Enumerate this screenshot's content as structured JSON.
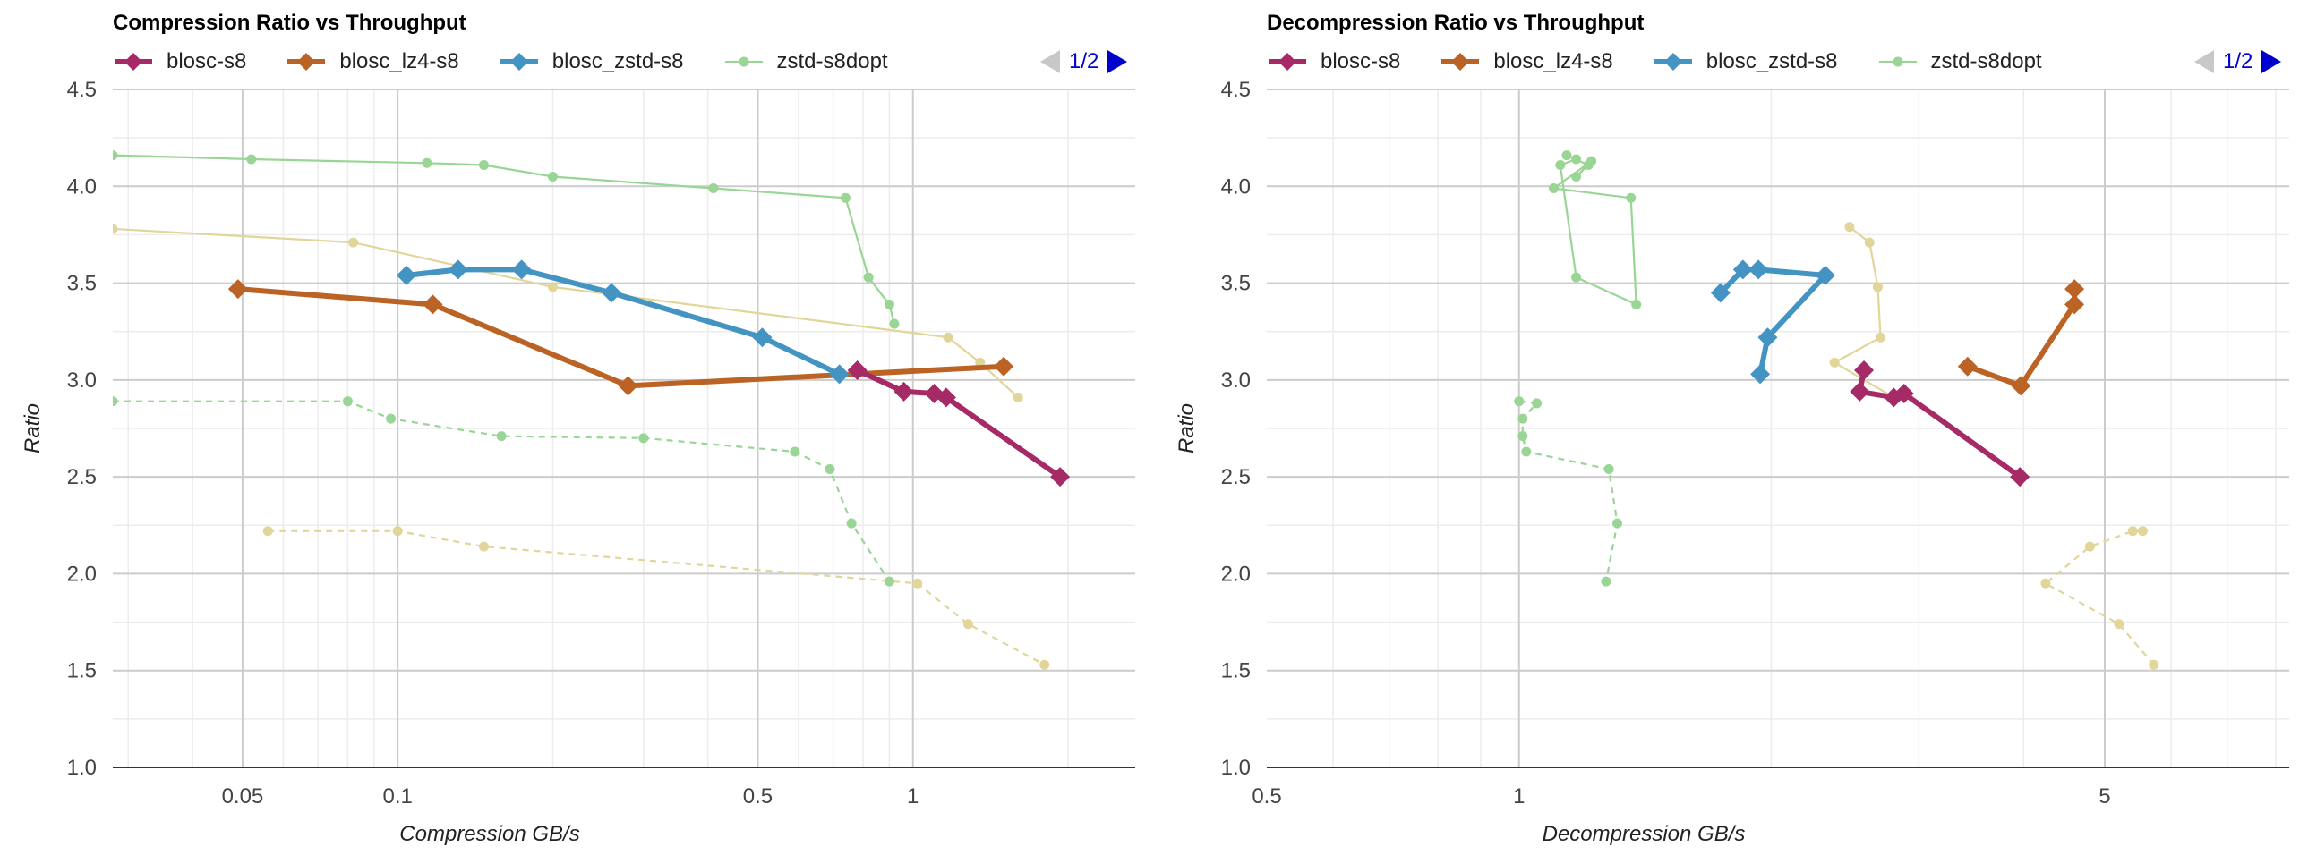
{
  "colors": {
    "blosc-s8": "#a62a66",
    "blosc_lz4-s8": "#bb6324",
    "blosc_zstd-s8": "#4393c3",
    "zstd-s8dopt": "#99d594",
    "zstd-tan": "#e2d59a",
    "grid_major": "#cccccc",
    "grid_minor": "#ececec",
    "pager_active": "#0000cc",
    "pager_inactive": "#c8c8c8"
  },
  "chart_data": [
    {
      "type": "line",
      "title": "Compression Ratio vs Throughput",
      "xlabel": "Compression GB/s",
      "ylabel": "Ratio",
      "x_scale": "log",
      "xlim": [
        0.028,
        2.7
      ],
      "ylim": [
        1.0,
        4.5
      ],
      "x_ticks": [
        0.05,
        0.1,
        0.5,
        1
      ],
      "x_tick_labels": [
        "0.05",
        "0.1",
        "0.5",
        "1"
      ],
      "y_ticks": [
        1.0,
        1.5,
        2.0,
        2.5,
        3.0,
        3.5,
        4.0,
        4.5
      ],
      "y_tick_labels": [
        "1.0",
        "1.5",
        "2.0",
        "2.5",
        "3.0",
        "3.5",
        "4.0",
        "4.5"
      ],
      "grid": true,
      "legend": {
        "position": "top",
        "page": "1/2"
      },
      "series": [
        {
          "name": "blosc-s8",
          "color_key": "blosc-s8",
          "line": "solid",
          "marker": "diamond",
          "legend": true,
          "x": [
            0.78,
            0.96,
            1.1,
            1.16,
            1.93
          ],
          "y": [
            3.05,
            2.94,
            2.93,
            2.91,
            2.5
          ]
        },
        {
          "name": "blosc_lz4-s8",
          "color_key": "blosc_lz4-s8",
          "line": "solid",
          "marker": "diamond",
          "legend": true,
          "x": [
            0.049,
            0.117,
            0.28,
            1.5
          ],
          "y": [
            3.47,
            3.39,
            2.97,
            3.07
          ]
        },
        {
          "name": "blosc_zstd-s8",
          "color_key": "blosc_zstd-s8",
          "line": "solid",
          "marker": "diamond",
          "legend": true,
          "x": [
            0.104,
            0.131,
            0.174,
            0.26,
            0.51,
            0.72
          ],
          "y": [
            3.54,
            3.57,
            3.57,
            3.45,
            3.22,
            3.03
          ]
        },
        {
          "name": "zstd-s8dopt",
          "color_key": "zstd-s8dopt",
          "line": "solid",
          "marker": "circle",
          "legend": true,
          "x": [
            0.028,
            0.052,
            0.114,
            0.147,
            0.2,
            0.41,
            0.74,
            0.82,
            0.9,
            0.92
          ],
          "y": [
            4.16,
            4.14,
            4.12,
            4.11,
            4.05,
            3.99,
            3.94,
            3.53,
            3.39,
            3.29
          ]
        },
        {
          "name": "",
          "color_key": "zstd-s8dopt",
          "line": "dashed",
          "marker": "circle",
          "legend": false,
          "x": [
            0.028,
            0.08,
            0.097,
            0.159,
            0.3,
            0.59,
            0.69,
            0.76,
            0.9
          ],
          "y": [
            2.89,
            2.89,
            2.8,
            2.71,
            2.7,
            2.63,
            2.54,
            2.26,
            1.96
          ]
        },
        {
          "name": "",
          "color_key": "zstd-tan",
          "line": "solid",
          "marker": "circle",
          "legend": false,
          "x": [
            0.028,
            0.082,
            0.2,
            1.17,
            1.35,
            1.6
          ],
          "y": [
            3.78,
            3.71,
            3.48,
            3.22,
            3.09,
            2.91
          ]
        },
        {
          "name": "",
          "color_key": "zstd-tan",
          "line": "dashed",
          "marker": "circle",
          "legend": false,
          "x": [
            0.056,
            0.1,
            0.147,
            1.02,
            1.28,
            1.8
          ],
          "y": [
            2.22,
            2.22,
            2.14,
            1.95,
            1.74,
            1.53
          ]
        }
      ]
    },
    {
      "type": "line",
      "title": "Decompression Ratio vs Throughput",
      "xlabel": "Decompression GB/s",
      "ylabel": "Ratio",
      "x_scale": "log",
      "xlim": [
        0.5,
        8.3
      ],
      "ylim": [
        1.0,
        4.5
      ],
      "x_ticks": [
        0.5,
        1,
        5
      ],
      "x_tick_labels": [
        "0.5",
        "1",
        "5"
      ],
      "y_ticks": [
        1.0,
        1.5,
        2.0,
        2.5,
        3.0,
        3.5,
        4.0,
        4.5
      ],
      "y_tick_labels": [
        "1.0",
        "1.5",
        "2.0",
        "2.5",
        "3.0",
        "3.5",
        "4.0",
        "4.5"
      ],
      "grid": true,
      "legend": {
        "position": "top",
        "page": "1/2"
      },
      "series": [
        {
          "name": "blosc-s8",
          "color_key": "blosc-s8",
          "line": "solid",
          "marker": "diamond",
          "legend": true,
          "x": [
            2.58,
            2.55,
            2.8,
            2.88,
            3.96
          ],
          "y": [
            3.05,
            2.94,
            2.91,
            2.93,
            2.5
          ]
        },
        {
          "name": "blosc_lz4-s8",
          "color_key": "blosc_lz4-s8",
          "line": "solid",
          "marker": "diamond",
          "legend": true,
          "x": [
            4.6,
            4.6,
            3.97,
            3.43
          ],
          "y": [
            3.47,
            3.39,
            2.97,
            3.07
          ]
        },
        {
          "name": "blosc_zstd-s8",
          "color_key": "blosc_zstd-s8",
          "line": "solid",
          "marker": "diamond",
          "legend": true,
          "x": [
            1.74,
            1.85,
            1.93,
            2.32,
            1.98,
            1.94
          ],
          "y": [
            3.45,
            3.57,
            3.57,
            3.54,
            3.22,
            3.03
          ]
        },
        {
          "name": "zstd-s8dopt",
          "color_key": "zstd-s8dopt",
          "line": "solid",
          "marker": "circle",
          "legend": true,
          "x": [
            1.14,
            1.21,
            1.17,
            1.22,
            1.1,
            1.36,
            1.38,
            1.17,
            1.12,
            1.17
          ],
          "y": [
            4.16,
            4.11,
            4.05,
            4.13,
            3.99,
            3.94,
            3.39,
            3.53,
            4.11,
            4.14
          ]
        },
        {
          "name": "",
          "color_key": "zstd-s8dopt",
          "line": "dashed",
          "marker": "circle",
          "legend": false,
          "x": [
            1.0,
            1.05,
            1.01,
            1.01,
            1.02,
            1.28,
            1.31,
            1.27
          ],
          "y": [
            2.89,
            2.88,
            2.8,
            2.71,
            2.63,
            2.54,
            2.26,
            1.96
          ]
        },
        {
          "name": "",
          "color_key": "zstd-tan",
          "line": "solid",
          "marker": "circle",
          "legend": false,
          "x": [
            2.48,
            2.62,
            2.68,
            2.7,
            2.38,
            2.8
          ],
          "y": [
            3.79,
            3.71,
            3.48,
            3.22,
            3.09,
            2.91
          ]
        },
        {
          "name": "",
          "color_key": "zstd-tan",
          "line": "dashed",
          "marker": "circle",
          "legend": false,
          "x": [
            5.55,
            5.4,
            4.8,
            4.25,
            5.2,
            5.72
          ],
          "y": [
            2.22,
            2.22,
            2.14,
            1.95,
            1.74,
            1.53
          ]
        }
      ]
    }
  ]
}
